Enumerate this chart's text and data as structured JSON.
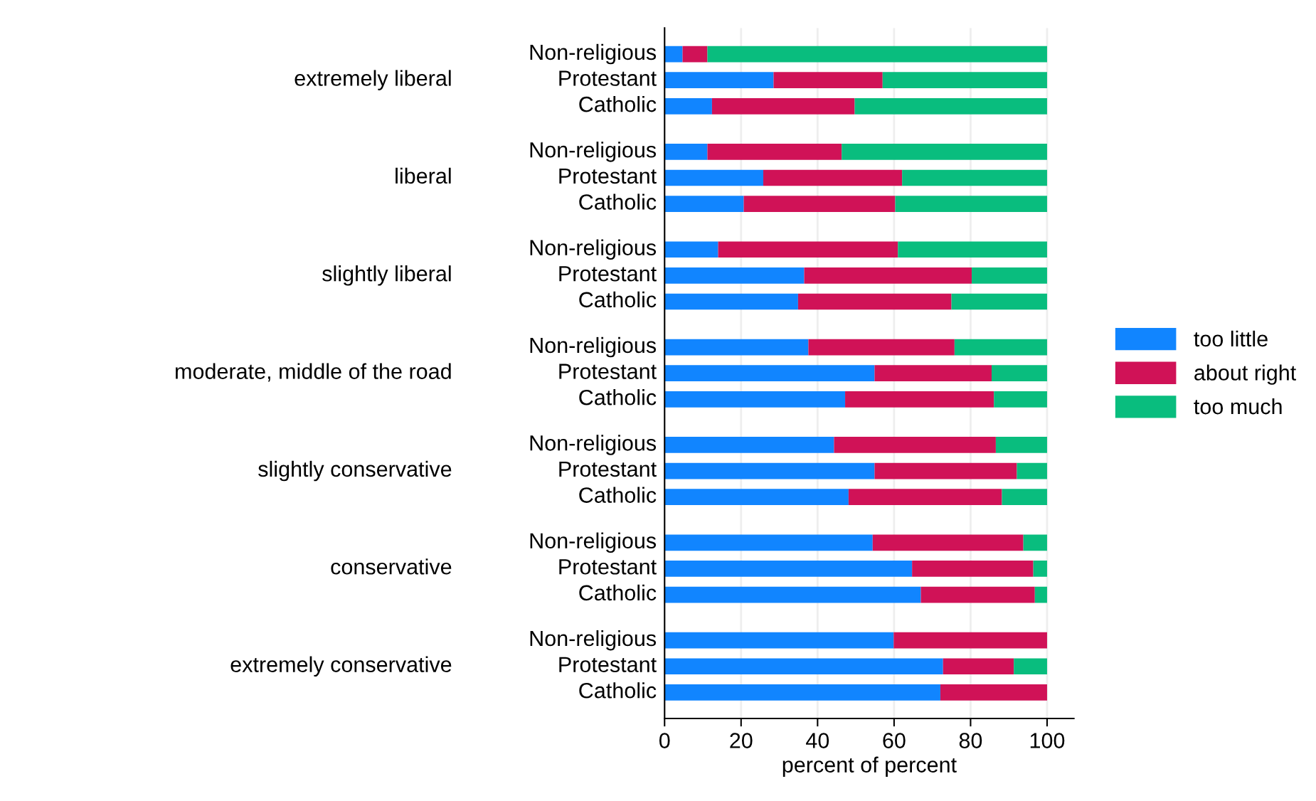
{
  "chart_data": {
    "type": "bar",
    "orientation": "horizontal",
    "stacked": true,
    "categories": [
      "Non-religious",
      "Protestant",
      "Catholic",
      "Non-religious",
      "Protestant",
      "Catholic",
      "Non-religious",
      "Protestant",
      "Catholic",
      "Non-religious",
      "Protestant",
      "Catholic",
      "Non-religious",
      "Protestant",
      "Catholic",
      "Non-religious",
      "Protestant",
      "Catholic",
      "Non-religious",
      "Protestant",
      "Catholic"
    ],
    "series": [
      {
        "name": "too little",
        "color": "#1185ff",
        "values": [
          4.7,
          28.5,
          12.4,
          11.2,
          25.8,
          20.7,
          14.0,
          36.5,
          34.9,
          37.6,
          54.9,
          47.2,
          44.3,
          54.9,
          48.1,
          54.4,
          64.7,
          67.0,
          59.9,
          72.8,
          72.1
        ]
      },
      {
        "name": "about right",
        "color": "#d01257",
        "values": [
          6.5,
          28.5,
          37.3,
          35.1,
          36.3,
          39.6,
          47.0,
          43.8,
          40.1,
          38.2,
          30.6,
          38.9,
          42.3,
          37.2,
          40.1,
          39.4,
          31.7,
          29.8,
          40.1,
          18.5,
          27.9
        ]
      },
      {
        "name": "too much",
        "color": "#09bd7e",
        "values": [
          88.8,
          43.0,
          50.3,
          53.7,
          37.9,
          39.7,
          39.0,
          19.7,
          25.0,
          24.2,
          14.5,
          13.9,
          13.4,
          7.9,
          11.8,
          6.2,
          3.6,
          3.2,
          0,
          8.7,
          0
        ]
      }
    ],
    "annotations": [
      "extremely liberal",
      "liberal",
      "slightly liberal",
      "moderate, middle of the road",
      "slightly conservative",
      "conservative",
      "extremely conservative"
    ],
    "xlabel": "percent of percent",
    "xlim": [
      0,
      107
    ],
    "xticks": [
      0,
      20,
      40,
      60,
      80,
      100
    ],
    "grid": "x",
    "legend": "right"
  }
}
